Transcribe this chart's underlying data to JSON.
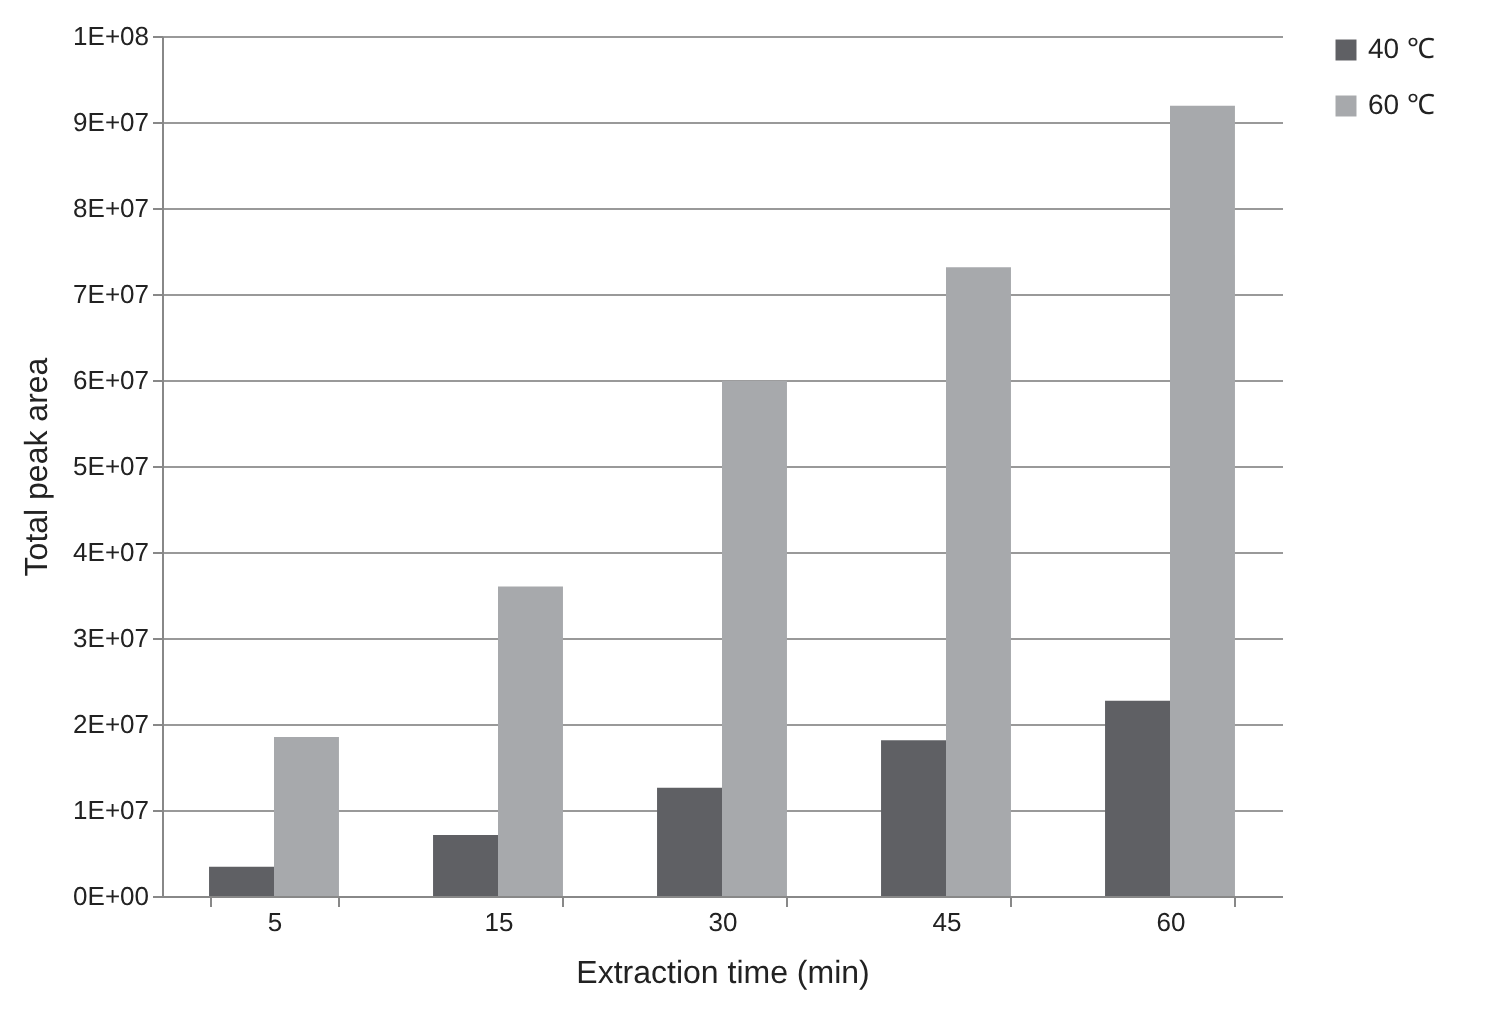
{
  "chart_data": {
    "type": "bar",
    "xlabel": "Extraction time (min)",
    "ylabel": "Total peak area",
    "categories": [
      "5",
      "15",
      "30",
      "45",
      "60"
    ],
    "series": [
      {
        "name": "40 ℃",
        "color": "#5f6064",
        "values": [
          3400000,
          7100000,
          12600000,
          18100000,
          22700000
        ]
      },
      {
        "name": "60 ℃",
        "color": "#a7a9ac",
        "values": [
          18500000,
          36000000,
          59900000,
          73100000,
          91900000
        ]
      }
    ],
    "ylim": [
      0,
      100000000
    ],
    "yticks": [
      {
        "value": 0,
        "label": "0E+00"
      },
      {
        "value": 10000000,
        "label": "1E+07"
      },
      {
        "value": 20000000,
        "label": "2E+07"
      },
      {
        "value": 30000000,
        "label": "3E+07"
      },
      {
        "value": 40000000,
        "label": "4E+07"
      },
      {
        "value": 50000000,
        "label": "5E+07"
      },
      {
        "value": 60000000,
        "label": "6E+07"
      },
      {
        "value": 70000000,
        "label": "7E+07"
      },
      {
        "value": 80000000,
        "label": "8E+07"
      },
      {
        "value": 90000000,
        "label": "9E+07"
      },
      {
        "value": 100000000,
        "label": "1E+08"
      }
    ],
    "grid": "y",
    "legend": "right"
  }
}
